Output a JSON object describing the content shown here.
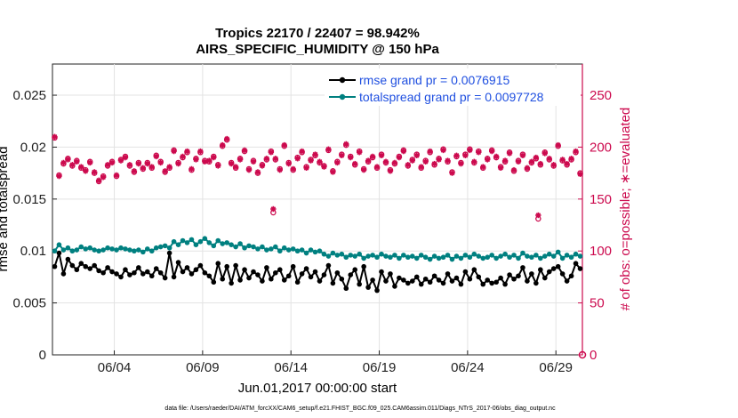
{
  "chart_data": {
    "type": "line",
    "title": "Tropics 22170 / 22407 = 98.942%",
    "subtitle": "AIRS_SPECIFIC_HUMIDITY @ 150 hPa",
    "xlabel": "Jun.01,2017 00:00:00 start",
    "ylabel_left": "rmse and totalspread",
    "ylabel_right": "# of obs: o=possible; ∗=evaluated",
    "footnote": "data file: /Users/raeder/DAI/ATM_forcXX/CAM6_setup/f.e21.FHIST_BGC.f09_025.CAM6assim.011/Diags_NTrS_2017-06/obs_diag_output.nc",
    "xlim_days": [
      0,
      30
    ],
    "ylim_left": [
      0,
      0.028
    ],
    "ylim_right": [
      0,
      280
    ],
    "x_ticks": [
      {
        "day": 3.5,
        "label": "06/04"
      },
      {
        "day": 8.5,
        "label": "06/09"
      },
      {
        "day": 13.5,
        "label": "06/14"
      },
      {
        "day": 18.5,
        "label": "06/19"
      },
      {
        "day": 23.5,
        "label": "06/24"
      },
      {
        "day": 28.5,
        "label": "06/29"
      }
    ],
    "y_ticks_left": [
      {
        "value": 0,
        "label": "0"
      },
      {
        "value": 0.005,
        "label": "0.005"
      },
      {
        "value": 0.01,
        "label": "0.01"
      },
      {
        "value": 0.015,
        "label": "0.015"
      },
      {
        "value": 0.02,
        "label": "0.02"
      },
      {
        "value": 0.025,
        "label": "0.025"
      }
    ],
    "y_ticks_right": [
      {
        "value": 0,
        "label": "0"
      },
      {
        "value": 50,
        "label": "50"
      },
      {
        "value": 100,
        "label": "100"
      },
      {
        "value": 150,
        "label": "150"
      },
      {
        "value": 200,
        "label": "200"
      },
      {
        "value": 250,
        "label": "250"
      }
    ],
    "legend": {
      "placement": "top-right",
      "entries": [
        {
          "label": "rmse grand pr = 0.0076915",
          "color": "#000000"
        },
        {
          "label": "totalspread grand pr = 0.0097728",
          "color": "#008080"
        }
      ]
    },
    "colors": {
      "rmse": "#000000",
      "totalspread": "#008080",
      "obs": "#cc0a4e",
      "axis": "#222222"
    },
    "days": [
      0.125,
      0.375,
      0.625,
      0.875,
      1.125,
      1.375,
      1.625,
      1.875,
      2.125,
      2.375,
      2.625,
      2.875,
      3.125,
      3.375,
      3.625,
      3.875,
      4.125,
      4.375,
      4.625,
      4.875,
      5.125,
      5.375,
      5.625,
      5.875,
      6.125,
      6.375,
      6.625,
      6.875,
      7.125,
      7.375,
      7.625,
      7.875,
      8.125,
      8.375,
      8.625,
      8.875,
      9.125,
      9.375,
      9.625,
      9.875,
      10.125,
      10.375,
      10.625,
      10.875,
      11.125,
      11.375,
      11.625,
      11.875,
      12.125,
      12.375,
      12.625,
      12.875,
      13.125,
      13.375,
      13.625,
      13.875,
      14.125,
      14.375,
      14.625,
      14.875,
      15.125,
      15.375,
      15.625,
      15.875,
      16.125,
      16.375,
      16.625,
      16.875,
      17.125,
      17.375,
      17.625,
      17.875,
      18.125,
      18.375,
      18.625,
      18.875,
      19.125,
      19.375,
      19.625,
      19.875,
      20.125,
      20.375,
      20.625,
      20.875,
      21.125,
      21.375,
      21.625,
      21.875,
      22.125,
      22.375,
      22.625,
      22.875,
      23.125,
      23.375,
      23.625,
      23.875,
      24.125,
      24.375,
      24.625,
      24.875,
      25.125,
      25.375,
      25.625,
      25.875,
      26.125,
      26.375,
      26.625,
      26.875,
      27.125,
      27.375,
      27.625,
      27.875,
      28.125,
      28.375,
      28.625,
      28.875,
      29.125,
      29.375,
      29.625,
      29.875
    ],
    "series": [
      {
        "name": "rmse",
        "values": [
          0.0085,
          0.0098,
          0.0078,
          0.0092,
          0.0086,
          0.0082,
          0.0088,
          0.0085,
          0.0083,
          0.0086,
          0.0081,
          0.0079,
          0.0084,
          0.008,
          0.0078,
          0.0075,
          0.0082,
          0.0077,
          0.0079,
          0.0084,
          0.0078,
          0.008,
          0.0076,
          0.0083,
          0.0079,
          0.0074,
          0.0098,
          0.0075,
          0.0089,
          0.008,
          0.0084,
          0.0078,
          0.0082,
          0.0086,
          0.0079,
          0.0076,
          0.007,
          0.0088,
          0.0073,
          0.0085,
          0.0069,
          0.0086,
          0.0072,
          0.0082,
          0.0074,
          0.008,
          0.0077,
          0.0071,
          0.0084,
          0.0073,
          0.0079,
          0.0082,
          0.0072,
          0.0076,
          0.0085,
          0.007,
          0.0078,
          0.0083,
          0.0075,
          0.008,
          0.0071,
          0.0077,
          0.0086,
          0.0069,
          0.0079,
          0.0073,
          0.0064,
          0.0077,
          0.0082,
          0.0068,
          0.0085,
          0.0065,
          0.0072,
          0.0062,
          0.008,
          0.0071,
          0.0078,
          0.0066,
          0.0074,
          0.0072,
          0.0069,
          0.0071,
          0.0075,
          0.0068,
          0.0073,
          0.007,
          0.0076,
          0.0072,
          0.0069,
          0.0078,
          0.0071,
          0.0074,
          0.0068,
          0.008,
          0.0073,
          0.0082,
          0.0075,
          0.0068,
          0.0072,
          0.0069,
          0.007,
          0.0074,
          0.0068,
          0.0077,
          0.0073,
          0.0076,
          0.0084,
          0.0071,
          0.0078,
          0.0069,
          0.0082,
          0.0074,
          0.008,
          0.0083,
          0.0085,
          0.0078,
          0.0071,
          0.0076,
          0.0088,
          0.0083
        ]
      },
      {
        "name": "totalspread",
        "values": [
          0.01,
          0.0106,
          0.0101,
          0.0103,
          0.01,
          0.0101,
          0.0104,
          0.0102,
          0.0103,
          0.0101,
          0.01,
          0.0101,
          0.0103,
          0.0102,
          0.0101,
          0.0103,
          0.0102,
          0.0101,
          0.01,
          0.0101,
          0.0099,
          0.0102,
          0.01,
          0.0103,
          0.0104,
          0.0105,
          0.0103,
          0.0109,
          0.0106,
          0.011,
          0.0108,
          0.0111,
          0.0106,
          0.0109,
          0.0112,
          0.0108,
          0.0105,
          0.011,
          0.0107,
          0.0108,
          0.0106,
          0.0104,
          0.0107,
          0.0103,
          0.0105,
          0.0104,
          0.0102,
          0.0104,
          0.0101,
          0.0102,
          0.0104,
          0.01,
          0.0103,
          0.0101,
          0.0102,
          0.01,
          0.0101,
          0.0098,
          0.0101,
          0.0099,
          0.01,
          0.0097,
          0.0095,
          0.0098,
          0.0096,
          0.0097,
          0.0094,
          0.0096,
          0.0095,
          0.0097,
          0.0093,
          0.0095,
          0.0096,
          0.0094,
          0.0097,
          0.0095,
          0.0094,
          0.0096,
          0.0093,
          0.0096,
          0.0094,
          0.0095,
          0.0093,
          0.0096,
          0.0094,
          0.0092,
          0.0095,
          0.0093,
          0.0094,
          0.0096,
          0.0092,
          0.0095,
          0.0093,
          0.0096,
          0.0094,
          0.0097,
          0.0095,
          0.0093,
          0.0094,
          0.0096,
          0.0093,
          0.0095,
          0.0097,
          0.0094,
          0.0096,
          0.0093,
          0.0098,
          0.0095,
          0.0094,
          0.0096,
          0.0093,
          0.0095,
          0.0097,
          0.0095,
          0.0099,
          0.0093,
          0.0096,
          0.0094,
          0.0097,
          0.0095
        ]
      },
      {
        "name": "obs_possible",
        "values": [
          209,
          173,
          184,
          189,
          182,
          187,
          180,
          178,
          186,
          175,
          167,
          172,
          182,
          186,
          172,
          188,
          191,
          182,
          176,
          185,
          179,
          185,
          180,
          192,
          186,
          176,
          180,
          197,
          185,
          190,
          195,
          178,
          189,
          195,
          187,
          186,
          191,
          183,
          201,
          207,
          185,
          180,
          189,
          196,
          179,
          187,
          175,
          183,
          188,
          196,
          188,
          179,
          201,
          185,
          178,
          190,
          195,
          181,
          188,
          192,
          185,
          182,
          197,
          177,
          186,
          193,
          202,
          191,
          183,
          196,
          179,
          186,
          190,
          180,
          193,
          185,
          178,
          184,
          191,
          197,
          182,
          188,
          193,
          180,
          187,
          195,
          183,
          189,
          198,
          186,
          176,
          191,
          185,
          193,
          198,
          185,
          196,
          180,
          189,
          197,
          190,
          181,
          186,
          195,
          177,
          187,
          193,
          179,
          185,
          189,
          183,
          195,
          188,
          182,
          201,
          187,
          183,
          188,
          195,
          175
        ]
      },
      {
        "name": "obs_evaluated",
        "values": [
          210,
          172,
          185,
          188,
          183,
          186,
          181,
          177,
          185,
          176,
          168,
          171,
          183,
          185,
          173,
          187,
          190,
          183,
          177,
          184,
          180,
          184,
          181,
          191,
          185,
          177,
          181,
          196,
          184,
          191,
          196,
          179,
          188,
          196,
          186,
          187,
          190,
          182,
          202,
          208,
          184,
          181,
          188,
          197,
          178,
          186,
          176,
          182,
          189,
          195,
          189,
          178,
          202,
          184,
          179,
          189,
          196,
          180,
          187,
          193,
          186,
          181,
          198,
          176,
          185,
          192,
          203,
          190,
          184,
          195,
          178,
          187,
          191,
          181,
          192,
          186,
          177,
          185,
          190,
          196,
          183,
          187,
          192,
          181,
          186,
          196,
          184,
          188,
          197,
          187,
          175,
          192,
          184,
          192,
          197,
          186,
          195,
          181,
          188,
          196,
          191,
          180,
          187,
          194,
          178,
          186,
          192,
          180,
          186,
          190,
          184,
          194,
          189,
          183,
          202,
          188,
          184,
          189,
          196,
          174
        ]
      }
    ],
    "annotations_outliers": [
      {
        "day": 12.5,
        "value": 137
      },
      {
        "day": 27.5,
        "value": 131
      }
    ]
  }
}
